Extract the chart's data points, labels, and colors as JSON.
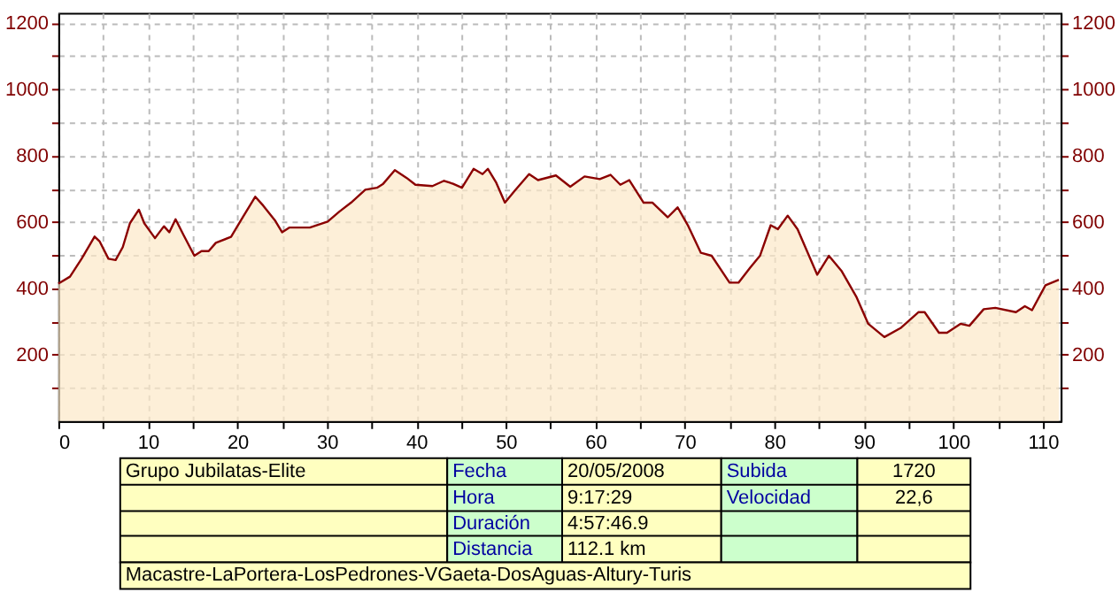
{
  "chart_data": {
    "type": "area",
    "x": [
      0,
      1.3,
      2.6,
      4.05,
      4.6,
      5.6,
      6.4,
      7.2,
      8,
      9,
      9.6,
      10.8,
      11.8,
      12.4,
      13.1,
      14,
      15.2,
      16,
      16.8,
      17.6,
      19.3,
      20.6,
      22,
      22.9,
      24.2,
      25,
      25.8,
      28.1,
      30.1,
      31.4,
      32.7,
      34.3,
      35.6,
      36.3,
      37.6,
      38.9,
      39.9,
      41.8,
      43.1,
      44.1,
      45.1,
      46.4,
      47.4,
      48,
      48.9,
      49.9,
      51,
      52.6,
      53.6,
      55.6,
      57.2,
      58.8,
      60.5,
      61.7,
      62.8,
      63.8,
      65.4,
      66.4,
      68.1,
      69.2,
      70.4,
      71.8,
      73,
      75,
      76,
      77.3,
      78.4,
      79.6,
      80.4,
      81.5,
      82.6,
      84.8,
      86.1,
      87.5,
      89.2,
      90.5,
      92.3,
      94.1,
      96.1,
      96.8,
      98.4,
      99.3,
      100.8,
      101.8,
      103.4,
      104.7,
      107,
      108,
      108.8,
      110.3,
      111.8
    ],
    "series": [
      {
        "color": "#fce8c8",
        "values": [
          414,
          435,
          489,
          556,
          542,
          489,
          485,
          524,
          596,
          637,
          596,
          551,
          587,
          569,
          608,
          560,
          498,
          512,
          512,
          537,
          555,
          614,
          676,
          649,
          605,
          569,
          583,
          583,
          601,
          631,
          658,
          697,
          703,
          715,
          756,
          733,
          712,
          708,
          724,
          715,
          703,
          760,
          744,
          760,
          720,
          658,
          694,
          744,
          726,
          740,
          706,
          737,
          729,
          742,
          712,
          726,
          658,
          658,
          614,
          644,
          587,
          507,
          498,
          417,
          417,
          462,
          498,
          590,
          578,
          619,
          578,
          441,
          498,
          453,
          373,
          293,
          253,
          280,
          328,
          328,
          266,
          266,
          293,
          287,
          337,
          341,
          328,
          346,
          334,
          409,
          426
        ]
      }
    ],
    "xlim": [
      0,
      112
    ],
    "xticks": [
      0,
      {
        "value": 5,
        "label": null
      },
      10,
      {
        "value": 15,
        "label": null
      },
      20,
      {
        "value": 25,
        "label": null
      },
      30,
      {
        "value": 35,
        "label": null
      },
      40,
      {
        "value": 45,
        "label": null
      },
      50,
      {
        "value": 55,
        "label": null
      },
      60,
      {
        "value": 65,
        "label": null
      },
      70,
      {
        "value": 75,
        "label": null
      },
      80,
      {
        "value": 85,
        "label": null
      },
      90,
      {
        "value": 95,
        "label": null
      },
      100,
      {
        "value": 105,
        "label": null
      },
      110
    ],
    "ylim": [
      0,
      1230
    ],
    "yticks": [
      {
        "value": 100,
        "label": null
      },
      200,
      {
        "value": 300,
        "label": null
      },
      400,
      {
        "value": 500,
        "label": null
      },
      600,
      {
        "value": 700,
        "label": null
      },
      800,
      {
        "value": 900,
        "label": null
      },
      1000,
      {
        "value": 1100,
        "label": null
      },
      1200
    ],
    "y2lim": [
      0,
      1230
    ],
    "y2ticks": [
      {
        "value": 100,
        "label": null
      },
      200,
      {
        "value": 300,
        "label": null
      },
      400,
      {
        "value": 500,
        "label": null
      },
      600,
      {
        "value": 700,
        "label": null
      },
      800,
      {
        "value": 900,
        "label": null
      },
      1000,
      {
        "value": 1100,
        "label": null
      },
      1200
    ],
    "grid": true,
    "annotations": [
      "Grupo Jubilatas-Elite",
      "Fecha",
      "20/05/2008",
      "Subida",
      "1720",
      "Hora",
      "9:17:29",
      "Velocidad",
      "22,6",
      "Duración",
      "4:57:46.9",
      "Distancia",
      "112.1 km",
      "Macastre-LaPortera-LosPedrones-VGaeta-DosAguas-Altury-Turis"
    ]
  }
}
